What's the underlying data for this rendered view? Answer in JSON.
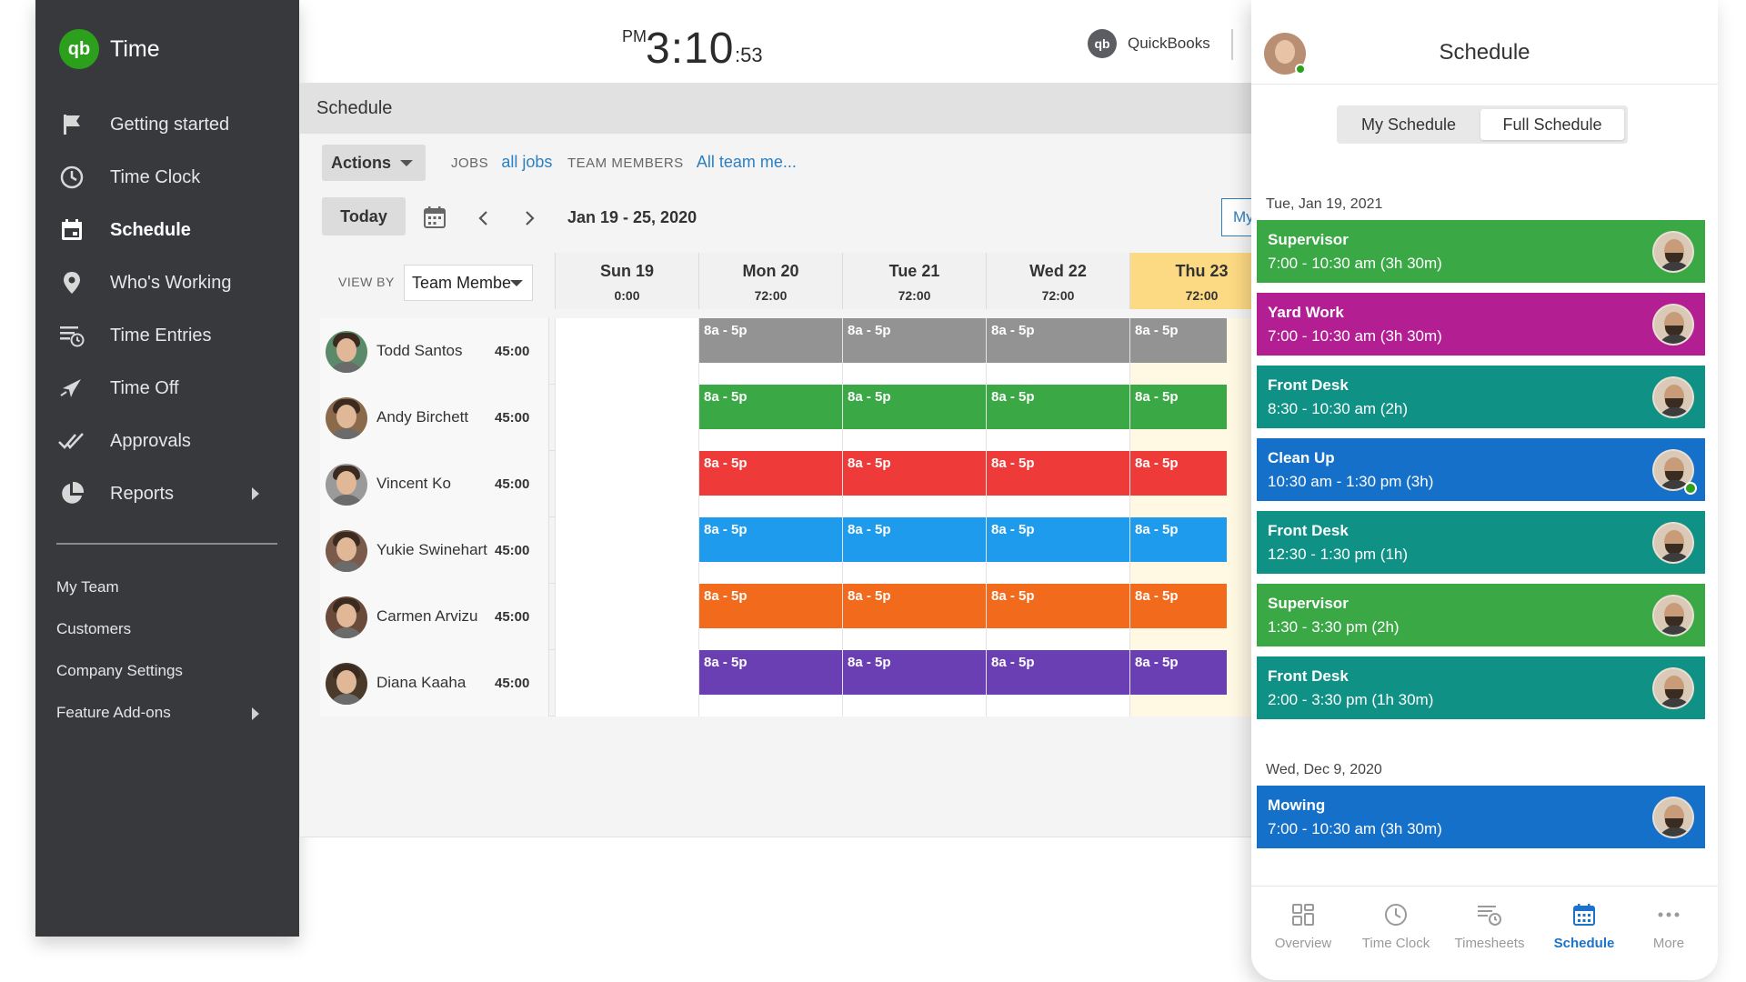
{
  "app": {
    "title": "Time",
    "logo_text": "qb"
  },
  "sidebar": {
    "items": [
      {
        "label": "Getting started",
        "icon": "flag-icon"
      },
      {
        "label": "Time Clock",
        "icon": "clock-icon"
      },
      {
        "label": "Schedule",
        "icon": "calendar-icon",
        "active": true
      },
      {
        "label": "Who's Working",
        "icon": "map-pin-icon"
      },
      {
        "label": "Time Entries",
        "icon": "time-entries-icon"
      },
      {
        "label": "Time Off",
        "icon": "airplane-icon"
      },
      {
        "label": "Approvals",
        "icon": "double-check-icon"
      },
      {
        "label": "Reports",
        "icon": "pie-chart-icon",
        "has_submenu": true
      }
    ],
    "secondary": [
      {
        "label": "My Team"
      },
      {
        "label": "Customers"
      },
      {
        "label": "Company Settings"
      },
      {
        "label": "Feature Add-ons",
        "has_submenu": true
      }
    ]
  },
  "header": {
    "clock_ampm": "PM",
    "clock_hm": "3:10",
    "clock_sec": ":53",
    "quickbooks_label": "QuickBooks",
    "quickbooks_logo": "qb"
  },
  "main": {
    "title": "Schedule",
    "actions_label": "Actions",
    "jobs_key": "JOBS",
    "jobs_value": "all jobs",
    "team_key": "TEAM MEMBERS",
    "team_value": "All team me...",
    "today_label": "Today",
    "date_range": "Jan 19 - 25, 2020",
    "my_button": "My",
    "view_by_key": "VIEW BY",
    "view_by_value": "Team Membe",
    "days": [
      {
        "name": "Sun 19",
        "hours": "0:00"
      },
      {
        "name": "Mon 20",
        "hours": "72:00"
      },
      {
        "name": "Tue 21",
        "hours": "72:00"
      },
      {
        "name": "Wed 22",
        "hours": "72:00"
      },
      {
        "name": "Thu 23",
        "hours": "72:00",
        "highlight": true
      }
    ],
    "members": [
      {
        "name": "Todd Santos",
        "hours": "45:00",
        "color": "#939393",
        "shifts": [
          "",
          "8a - 5p",
          "8a - 5p",
          "8a - 5p",
          "8a - 5p"
        ]
      },
      {
        "name": "Andy Birchett",
        "hours": "45:00",
        "color": "#3aa845",
        "shifts": [
          "",
          "8a - 5p",
          "8a - 5p",
          "8a - 5p",
          "8a - 5p"
        ]
      },
      {
        "name": "Vincent Ko",
        "hours": "45:00",
        "color": "#ef3a3a",
        "shifts": [
          "",
          "8a - 5p",
          "8a - 5p",
          "8a - 5p",
          "8a - 5p"
        ]
      },
      {
        "name": "Yukie Swinehart",
        "hours": "45:00",
        "color": "#1e9bec",
        "shifts": [
          "",
          "8a - 5p",
          "8a - 5p",
          "8a - 5p",
          "8a - 5p"
        ]
      },
      {
        "name": "Carmen Arvizu",
        "hours": "45:00",
        "color": "#f26a1b",
        "shifts": [
          "",
          "8a - 5p",
          "8a - 5p",
          "8a - 5p",
          "8a - 5p"
        ]
      },
      {
        "name": "Diana Kaaha",
        "hours": "45:00",
        "color": "#6b3fb4",
        "shifts": [
          "",
          "8a - 5p",
          "8a - 5p",
          "8a - 5p",
          "8a - 5p"
        ]
      }
    ]
  },
  "mobile": {
    "title": "Schedule",
    "toggle": [
      "My Schedule",
      "Full Schedule"
    ],
    "toggle_selected": "Full Schedule",
    "groups": [
      {
        "date": "Tue, Jan 19, 2021",
        "shifts": [
          {
            "title": "Supervisor",
            "time": "7:00 - 10:30 am (3h 30m)",
            "color": "#3aa845"
          },
          {
            "title": "Yard Work",
            "time": "7:00 - 10:30 am (3h 30m)",
            "color": "#b31f93"
          },
          {
            "title": "Front Desk",
            "time": "8:30 - 10:30 am (2h)",
            "color": "#0f9185"
          },
          {
            "title": "Clean Up",
            "time": "10:30 am - 1:30 pm (3h)",
            "color": "#1570c9",
            "online": true
          },
          {
            "title": "Front Desk",
            "time": "12:30 - 1:30 pm (1h)",
            "color": "#0f9185"
          },
          {
            "title": "Supervisor",
            "time": "1:30 - 3:30 pm (2h)",
            "color": "#3aa845"
          },
          {
            "title": "Front Desk",
            "time": "2:00 - 3:30 pm (1h 30m)",
            "color": "#0f9185"
          }
        ]
      },
      {
        "date": "Wed, Dec 9, 2020",
        "shifts": [
          {
            "title": "Mowing",
            "time": "7:00 - 10:30 am (3h 30m)",
            "color": "#1570c9"
          }
        ]
      }
    ],
    "tabs": [
      {
        "label": "Overview",
        "icon": "grid-icon"
      },
      {
        "label": "Time Clock",
        "icon": "clock-icon"
      },
      {
        "label": "Timesheets",
        "icon": "timesheets-icon"
      },
      {
        "label": "Schedule",
        "icon": "calendar-icon",
        "active": true
      },
      {
        "label": "More",
        "icon": "more-dots-icon"
      }
    ],
    "accent_color": "#1d72c9"
  },
  "colors": {
    "brand_green": "#2ca01c",
    "sidebar_bg": "#38393d",
    "link_blue": "#2d7fc0",
    "today_highlight": "#fcd983"
  }
}
